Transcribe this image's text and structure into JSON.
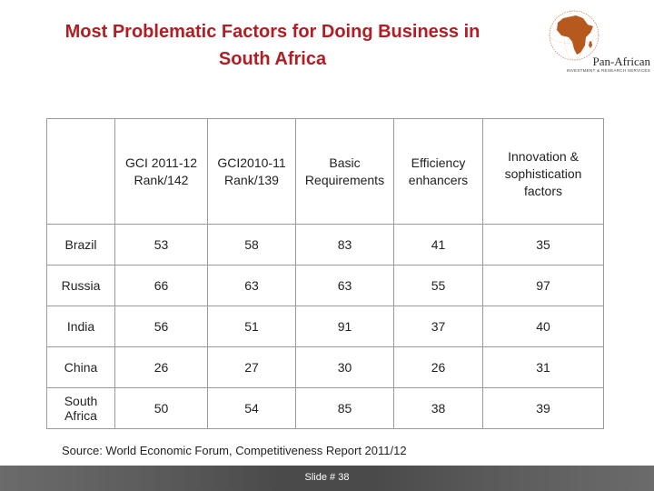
{
  "title": {
    "line1": "Most Problematic Factors for Doing Business in",
    "line2": "South Africa"
  },
  "logo": {
    "name": "Pan-African",
    "tagline": "INVESTMENT & RESEARCH SERVICES"
  },
  "table": {
    "headers": [
      "",
      "GCI 2011-12 Rank/142",
      "GCI2010-11 Rank/139",
      "Basic Requirements",
      "Efficiency enhancers",
      "Innovation & sophistication factors"
    ],
    "header_lines": [
      [],
      [
        "GCI 2011-12",
        "Rank/142"
      ],
      [
        "GCI2010-11",
        "Rank/139"
      ],
      [
        "Basic",
        "Requirements"
      ],
      [
        "Efficiency",
        "enhancers"
      ],
      [
        "Innovation &",
        "sophistication",
        "factors"
      ]
    ],
    "rows": [
      {
        "country": "Brazil",
        "gci_2011_12": "53",
        "gci_2010_11": "58",
        "basic": "83",
        "efficiency": "41",
        "innovation": "35"
      },
      {
        "country": "Russia",
        "gci_2011_12": "66",
        "gci_2010_11": "63",
        "basic": "63",
        "efficiency": "55",
        "innovation": "97"
      },
      {
        "country": "India",
        "gci_2011_12": "56",
        "gci_2010_11": "51",
        "basic": "91",
        "efficiency": "37",
        "innovation": "40"
      },
      {
        "country": "China",
        "gci_2011_12": "26",
        "gci_2010_11": "27",
        "basic": "30",
        "efficiency": "26",
        "innovation": "31"
      },
      {
        "country": "South Africa",
        "gci_2011_12": "50",
        "gci_2010_11": "54",
        "basic": "85",
        "efficiency": "38",
        "innovation": "39"
      }
    ]
  },
  "source": "Source: World Economic Forum, Competitiveness Report 2011/12",
  "footer": {
    "slide_label": "Slide # 38"
  },
  "colors": {
    "title": "#b01e23",
    "footer_bar": "#4a4a4a",
    "africa": "#b5591f"
  }
}
